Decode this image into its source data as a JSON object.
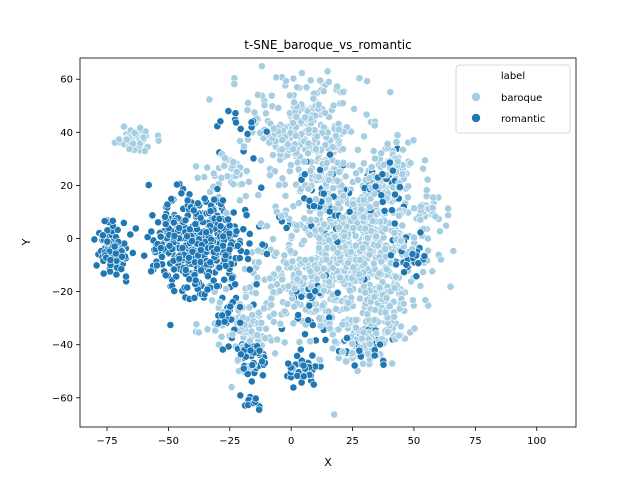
{
  "chart_data": {
    "type": "scatter",
    "title": "t-SNE_baroque_vs_romantic",
    "xlabel": "X",
    "ylabel": "Y",
    "xlim": [
      -86,
      116
    ],
    "ylim": [
      -71,
      68
    ],
    "xticks": [
      -75,
      -50,
      -25,
      0,
      25,
      50,
      75,
      100
    ],
    "yticks": [
      -60,
      -40,
      -20,
      0,
      20,
      40,
      60
    ],
    "grid": false,
    "legend": {
      "title": "label",
      "placement": "top-right",
      "entries": [
        "baroque",
        "romantic"
      ]
    },
    "series": [
      {
        "name": "baroque",
        "color": "#a6cee3",
        "clusters": [
          {
            "cx": 5,
            "cy": 42,
            "sx": 11,
            "sy": 9,
            "n": 260
          },
          {
            "cx": 25,
            "cy": -10,
            "sx": 13,
            "sy": 14,
            "n": 480
          },
          {
            "cx": 30,
            "cy": 8,
            "sx": 15,
            "sy": 10,
            "n": 180
          },
          {
            "cx": -64,
            "cy": 37,
            "sx": 3,
            "sy": 2.5,
            "n": 55
          },
          {
            "cx": 42,
            "cy": 28,
            "sx": 5,
            "sy": 5,
            "n": 70
          },
          {
            "cx": 55,
            "cy": 10,
            "sx": 3,
            "sy": 3,
            "n": 25
          },
          {
            "cx": 28,
            "cy": -38,
            "sx": 7,
            "sy": 5,
            "n": 90
          },
          {
            "cx": -20,
            "cy": -35,
            "sx": 8,
            "sy": 7,
            "n": 80
          },
          {
            "cx": 0,
            "cy": -15,
            "sx": 10,
            "sy": 10,
            "n": 130
          },
          {
            "cx": -25,
            "cy": 25,
            "sx": 6,
            "sy": 4,
            "n": 40
          },
          {
            "cx": 40,
            "cy": -25,
            "sx": 6,
            "sy": 8,
            "n": 60
          },
          {
            "cx": 15,
            "cy": 25,
            "sx": 8,
            "sy": 6,
            "n": 60
          }
        ]
      },
      {
        "name": "romantic",
        "color": "#1f78b4",
        "clusters": [
          {
            "cx": -38,
            "cy": -2,
            "sx": 10,
            "sy": 9,
            "n": 420
          },
          {
            "cx": -73,
            "cy": -4,
            "sx": 3.2,
            "sy": 5,
            "n": 90
          },
          {
            "cx": -15,
            "cy": -45,
            "sx": 3,
            "sy": 3,
            "n": 45
          },
          {
            "cx": 5,
            "cy": -49,
            "sx": 3.5,
            "sy": 3,
            "n": 45
          },
          {
            "cx": -16,
            "cy": -61,
            "sx": 2,
            "sy": 1.5,
            "n": 12
          },
          {
            "cx": -25,
            "cy": -32,
            "sx": 3,
            "sy": 5,
            "n": 25
          },
          {
            "cx": 37,
            "cy": 20,
            "sx": 5,
            "sy": 6,
            "n": 30
          },
          {
            "cx": 50,
            "cy": -7,
            "sx": 4,
            "sy": 4,
            "n": 25
          },
          {
            "cx": 15,
            "cy": 15,
            "sx": 10,
            "sy": 8,
            "n": 50
          },
          {
            "cx": 10,
            "cy": -25,
            "sx": 6,
            "sy": 8,
            "n": 30
          },
          {
            "cx": -20,
            "cy": 40,
            "sx": 5,
            "sy": 5,
            "n": 15
          },
          {
            "cx": 30,
            "cy": -40,
            "sx": 5,
            "sy": 5,
            "n": 30
          }
        ]
      }
    ]
  }
}
